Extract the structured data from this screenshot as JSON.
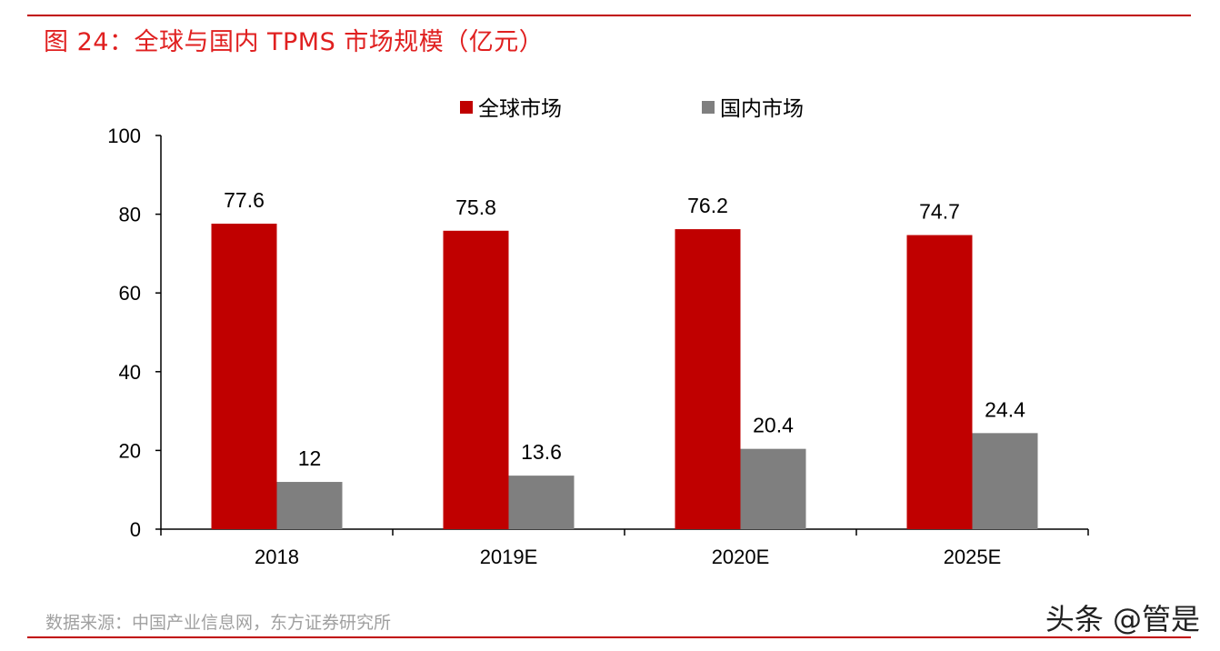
{
  "header": {
    "title": "图 24：全球与国内 TPMS 市场规模（亿元）"
  },
  "footer": {
    "source": "数据来源：中国产业信息网，东方证券研究所",
    "watermark": "头条 @管是"
  },
  "colors": {
    "rule": "#c00000",
    "title": "#e02020",
    "global_series": "#c00000",
    "domestic_series": "#7f7f7f",
    "axis": "#000000",
    "source_text": "#a0a0a0"
  },
  "chart_data": {
    "type": "bar",
    "categories": [
      "2018",
      "2019E",
      "2020E",
      "2025E"
    ],
    "series": [
      {
        "name": "全球市场",
        "values": [
          77.6,
          75.8,
          76.2,
          74.7
        ],
        "labels": [
          "77.6",
          "75.8",
          "76.2",
          "74.7"
        ]
      },
      {
        "name": "国内市场",
        "values": [
          12,
          13.6,
          20.4,
          24.4
        ],
        "labels": [
          "12",
          "13.6",
          "20.4",
          "24.4"
        ]
      }
    ],
    "ylim": [
      0,
      100
    ],
    "yticks": [
      0,
      20,
      40,
      60,
      80,
      100
    ],
    "grid": false,
    "legend_position": "top-center",
    "title": "",
    "xlabel": "",
    "ylabel": ""
  }
}
